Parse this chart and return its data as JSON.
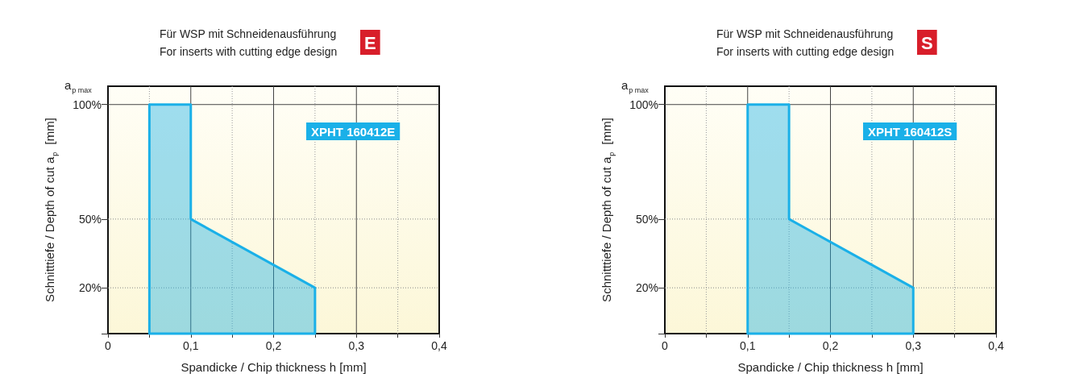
{
  "chart_data": [
    {
      "type": "area",
      "title": "Für WSP mit Schneidenausführung",
      "subtitle": "For inserts with cutting edge design",
      "xlabel": "Spandicke / Chip thickness h [mm]",
      "ylabel": "Schnitttiefe / Depth of cut a$_{p}$  [mm]",
      "annotations": [
        "E",
        "XPHT 160412E",
        "a$_{p max}$"
      ],
      "series": [
        {
          "color": "#1ab0e8",
          "x": [
            0.05,
            0.05,
            0.1,
            0.1,
            0.25,
            0.25
          ],
          "values": [
            0,
            100,
            100,
            50,
            20,
            0
          ]
        }
      ],
      "xlim": [
        0,
        0.4
      ],
      "xticks": [
        0,
        {
          "value": 0.05,
          "label": null
        },
        {
          "value": 0.1,
          "label": "0,1"
        },
        {
          "value": 0.15,
          "label": null
        },
        {
          "value": 0.2,
          "label": "0,2"
        },
        {
          "value": 0.25,
          "label": null
        },
        {
          "value": 0.3,
          "label": "0,3"
        },
        {
          "value": 0.35,
          "label": null
        },
        {
          "value": 0.4,
          "label": "0,4"
        }
      ],
      "ylim": [
        0,
        108
      ],
      "yticks": [
        {
          "value": 0,
          "label": null
        },
        {
          "value": 20,
          "label": "20%"
        },
        {
          "value": 50,
          "label": "50%"
        },
        {
          "value": 100,
          "label": "100%"
        }
      ],
      "grid": true
    },
    {
      "type": "area",
      "title": "Für WSP mit Schneidenausführung",
      "subtitle": "For inserts with cutting edge design",
      "xlabel": "Spandicke / Chip thickness h [mm]",
      "ylabel": "Schnitttiefe / Depth of cut a$_{p}$  [mm]",
      "annotations": [
        "S",
        "XPHT 160412S",
        "a$_{p max}$"
      ],
      "series": [
        {
          "color": "#1ab0e8",
          "x": [
            0.1,
            0.1,
            0.15,
            0.15,
            0.3,
            0.3
          ],
          "values": [
            0,
            100,
            100,
            50,
            20,
            0
          ]
        }
      ],
      "xlim": [
        0,
        0.4
      ],
      "xticks": [
        0,
        {
          "value": 0.05,
          "label": null
        },
        {
          "value": 0.1,
          "label": "0,1"
        },
        {
          "value": 0.15,
          "label": null
        },
        {
          "value": 0.2,
          "label": "0,2"
        },
        {
          "value": 0.25,
          "label": null
        },
        {
          "value": 0.3,
          "label": "0,3"
        },
        {
          "value": 0.35,
          "label": null
        },
        {
          "value": 0.4,
          "label": "0,4"
        }
      ],
      "ylim": [
        0,
        108
      ],
      "yticks": [
        {
          "value": 0,
          "label": null
        },
        {
          "value": 20,
          "label": "20%"
        },
        {
          "value": 50,
          "label": "50%"
        },
        {
          "value": 100,
          "label": "100%"
        }
      ],
      "grid": true
    }
  ]
}
